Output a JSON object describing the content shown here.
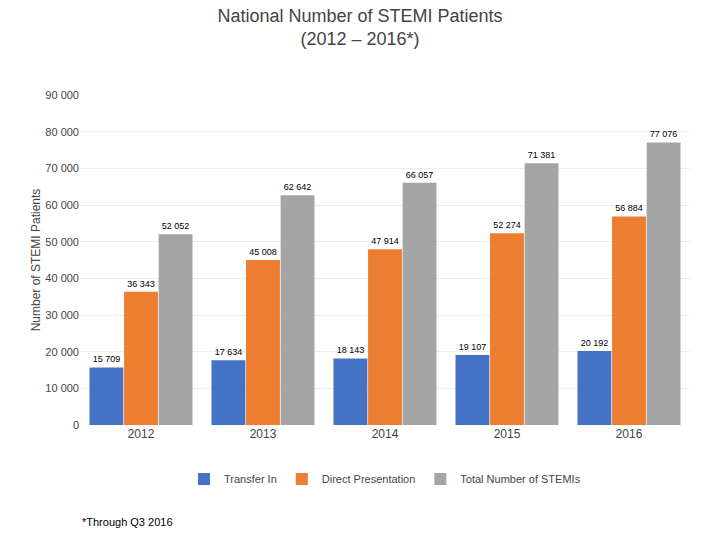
{
  "chart_data": {
    "type": "bar",
    "title": "National Number of STEMI Patients",
    "subtitle": "(2012 – 2016*)",
    "y_label": "Number of STEMI Patients",
    "annotations": [
      "*Through Q3 2016"
    ],
    "categories": [
      "2012",
      "2013",
      "2014",
      "2015",
      "2016"
    ],
    "series": [
      {
        "name": "Transfer In",
        "color": "#4472C4",
        "values": [
          15709,
          17634,
          18143,
          19107,
          20192
        ],
        "value_labels": [
          "15 709",
          "17 634",
          "18 143",
          "19 107",
          "20 192"
        ]
      },
      {
        "name": "Direct Presentation",
        "color": "#ED7D31",
        "values": [
          36343,
          45008,
          47914,
          52274,
          56884
        ],
        "value_labels": [
          "36 343",
          "45 008",
          "47 914",
          "52 274",
          "56 884"
        ]
      },
      {
        "name": "Total Number of STEMIs",
        "color": "#A5A5A5",
        "values": [
          52052,
          62642,
          66057,
          71381,
          77076
        ],
        "value_labels": [
          "52 052",
          "62 642",
          "66 057",
          "71 381",
          "77 076"
        ]
      }
    ],
    "ylim": [
      0,
      90000
    ],
    "yticks": [
      0,
      {
        "value": 10000,
        "label": "10 000"
      },
      {
        "value": 20000,
        "label": "20 000"
      },
      {
        "value": 30000,
        "label": "30 000"
      },
      {
        "value": 40000,
        "label": "40 000"
      },
      {
        "value": 50000,
        "label": "50 000"
      },
      {
        "value": 60000,
        "label": "60 000"
      },
      {
        "value": 70000,
        "label": "70 000"
      },
      {
        "value": 80000,
        "label": "80 000"
      },
      {
        "value": 90000,
        "label": "90 000"
      }
    ],
    "grid": true,
    "legend": "bottom",
    "data_labels": true
  }
}
